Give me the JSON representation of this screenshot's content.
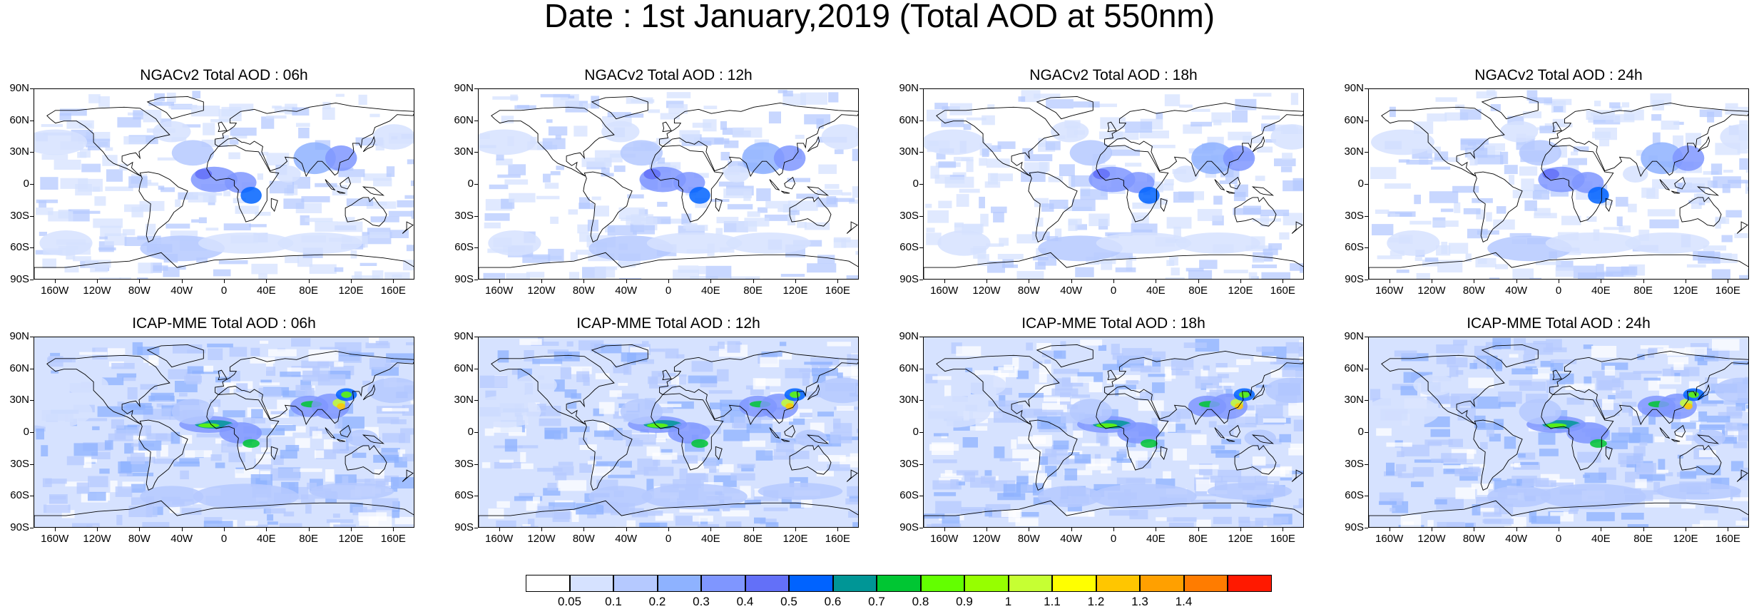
{
  "title": "Date : 1st January,2019 (Total AOD at 550nm)",
  "panels": [
    {
      "title": "NGACv2 Total AOD : 06h",
      "model": "ngac"
    },
    {
      "title": "NGACv2 Total AOD : 12h",
      "model": "ngac"
    },
    {
      "title": "NGACv2 Total AOD : 18h",
      "model": "ngac"
    },
    {
      "title": "NGACv2 Total AOD : 24h",
      "model": "ngac"
    },
    {
      "title": "ICAP-MME Total AOD : 06h",
      "model": "icap"
    },
    {
      "title": "ICAP-MME Total AOD : 12h",
      "model": "icap"
    },
    {
      "title": "ICAP-MME Total AOD : 18h",
      "model": "icap"
    },
    {
      "title": "ICAP-MME Total AOD : 24h",
      "model": "icap"
    }
  ],
  "lat_labels": [
    "90N",
    "60N",
    "30N",
    "0",
    "30S",
    "60S",
    "90S"
  ],
  "lat_values": [
    90,
    60,
    30,
    0,
    -30,
    -60,
    -90
  ],
  "lon_labels": [
    "160W",
    "120W",
    "80W",
    "40W",
    "0",
    "40E",
    "80E",
    "120E",
    "160E"
  ],
  "lon_values": [
    -160,
    -120,
    -80,
    -40,
    0,
    40,
    80,
    120,
    160
  ],
  "colorbar": {
    "labels": [
      "0.05",
      "0.1",
      "0.2",
      "0.3",
      "0.4",
      "0.5",
      "0.6",
      "0.7",
      "0.8",
      "0.9",
      "1",
      "1.1",
      "1.2",
      "1.3",
      "1.4"
    ],
    "colors": [
      "#ffffff",
      "#d6e2ff",
      "#b5c9ff",
      "#8eb2ff",
      "#7f96ff",
      "#6370f8",
      "#0063ff",
      "#009696",
      "#00c633",
      "#63ff00",
      "#96ff00",
      "#c6ff33",
      "#ffff00",
      "#ffc600",
      "#ffa000",
      "#ff7c00",
      "#ff1900"
    ]
  }
}
